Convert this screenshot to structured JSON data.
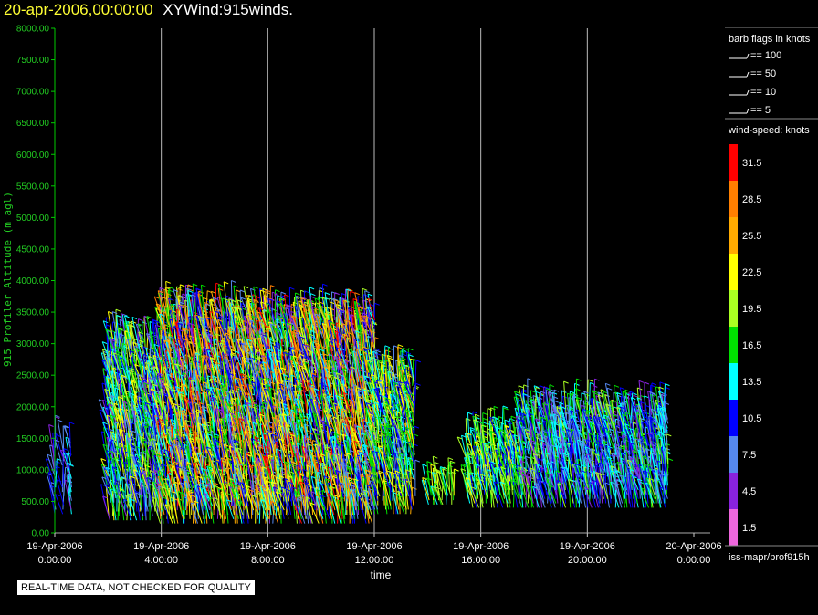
{
  "header": {
    "date_label": "20-apr-2006,00:00:00",
    "product_label": "XYWind:915winds."
  },
  "chart_data": {
    "type": "scatter",
    "subtype": "wind-barb",
    "ylabel": "915 Profiler Altitude (m agl)",
    "xlabel": "time",
    "ylim": [
      0,
      8000
    ],
    "yticks": [
      "0.00",
      "500.00",
      "1000.00",
      "1500.00",
      "2000.00",
      "2500.00",
      "3000.00",
      "3500.00",
      "4000.00",
      "4500.00",
      "5000.00",
      "5500.00",
      "6000.00",
      "6500.00",
      "7000.00",
      "7500.00",
      "8000.00"
    ],
    "xlim_hours": [
      0,
      24
    ],
    "xticks": [
      {
        "h": 0,
        "date": "19-Apr-2006",
        "time": "0:00:00"
      },
      {
        "h": 4,
        "date": "19-Apr-2006",
        "time": "4:00:00"
      },
      {
        "h": 8,
        "date": "19-Apr-2006",
        "time": "8:00:00"
      },
      {
        "h": 12,
        "date": "19-Apr-2006",
        "time": "12:00:00"
      },
      {
        "h": 16,
        "date": "19-Apr-2006",
        "time": "16:00:00"
      },
      {
        "h": 20,
        "date": "19-Apr-2006",
        "time": "20:00:00"
      },
      {
        "h": 24,
        "date": "20-Apr-2006",
        "time": "0:00:00"
      }
    ],
    "grid": "vertical lines at 4-hour ticks",
    "series": [
      {
        "hours": [
          0.0,
          0.3,
          0.6
        ],
        "alt_range": [
          300,
          1450
        ],
        "speed_range": [
          4.5,
          13.5
        ]
      },
      {
        "hours": [
          2.0,
          4.0
        ],
        "alt_range": [
          200,
          3000
        ],
        "speed_range": [
          4.5,
          22.5
        ]
      },
      {
        "hours": [
          4.0,
          8.0
        ],
        "alt_range": [
          150,
          3500
        ],
        "speed_range": [
          4.5,
          31.5
        ]
      },
      {
        "hours": [
          8.0,
          12.0
        ],
        "alt_range": [
          150,
          3400
        ],
        "speed_range": [
          4.5,
          31.5
        ]
      },
      {
        "hours": [
          12.0,
          13.5
        ],
        "alt_range": [
          300,
          2500
        ],
        "speed_range": [
          7.5,
          25.5
        ]
      },
      {
        "hours": [
          14.0,
          15.0
        ],
        "alt_range": [
          450,
          700
        ],
        "speed_range": [
          13.5,
          22.5
        ]
      },
      {
        "hours": [
          15.5,
          17.5
        ],
        "alt_range": [
          400,
          1500
        ],
        "speed_range": [
          10.5,
          22.5
        ]
      },
      {
        "hours": [
          17.5,
          23.0
        ],
        "alt_range": [
          400,
          1900
        ],
        "speed_range": [
          4.5,
          19.5
        ]
      }
    ]
  },
  "legend": {
    "barb_title": "barb flags in knots",
    "barb_items": [
      "== 100",
      "== 50",
      "== 10",
      "== 5"
    ],
    "speed_title": "wind-speed: knots",
    "speed_items": [
      {
        "label": "31.5",
        "color": "#ff0000"
      },
      {
        "label": "28.5",
        "color": "#ff7f00"
      },
      {
        "label": "25.5",
        "color": "#ffaa00"
      },
      {
        "label": "22.5",
        "color": "#ffff00"
      },
      {
        "label": "19.5",
        "color": "#aaff22"
      },
      {
        "label": "16.5",
        "color": "#00e000"
      },
      {
        "label": "13.5",
        "color": "#00ffff"
      },
      {
        "label": "10.5",
        "color": "#0000ff"
      },
      {
        "label": "7.5",
        "color": "#5588ee"
      },
      {
        "label": "4.5",
        "color": "#8822dd"
      },
      {
        "label": "1.5",
        "color": "#ee66dd"
      }
    ],
    "source_label": "iss-mapr/prof915h"
  },
  "footer": {
    "qc_note": "REAL-TIME DATA, NOT CHECKED FOR QUALITY"
  },
  "colors": {
    "axis": "#00cc00",
    "tick_label": "#22cc22",
    "grid": "#bbbbbb",
    "background": "#000000"
  }
}
